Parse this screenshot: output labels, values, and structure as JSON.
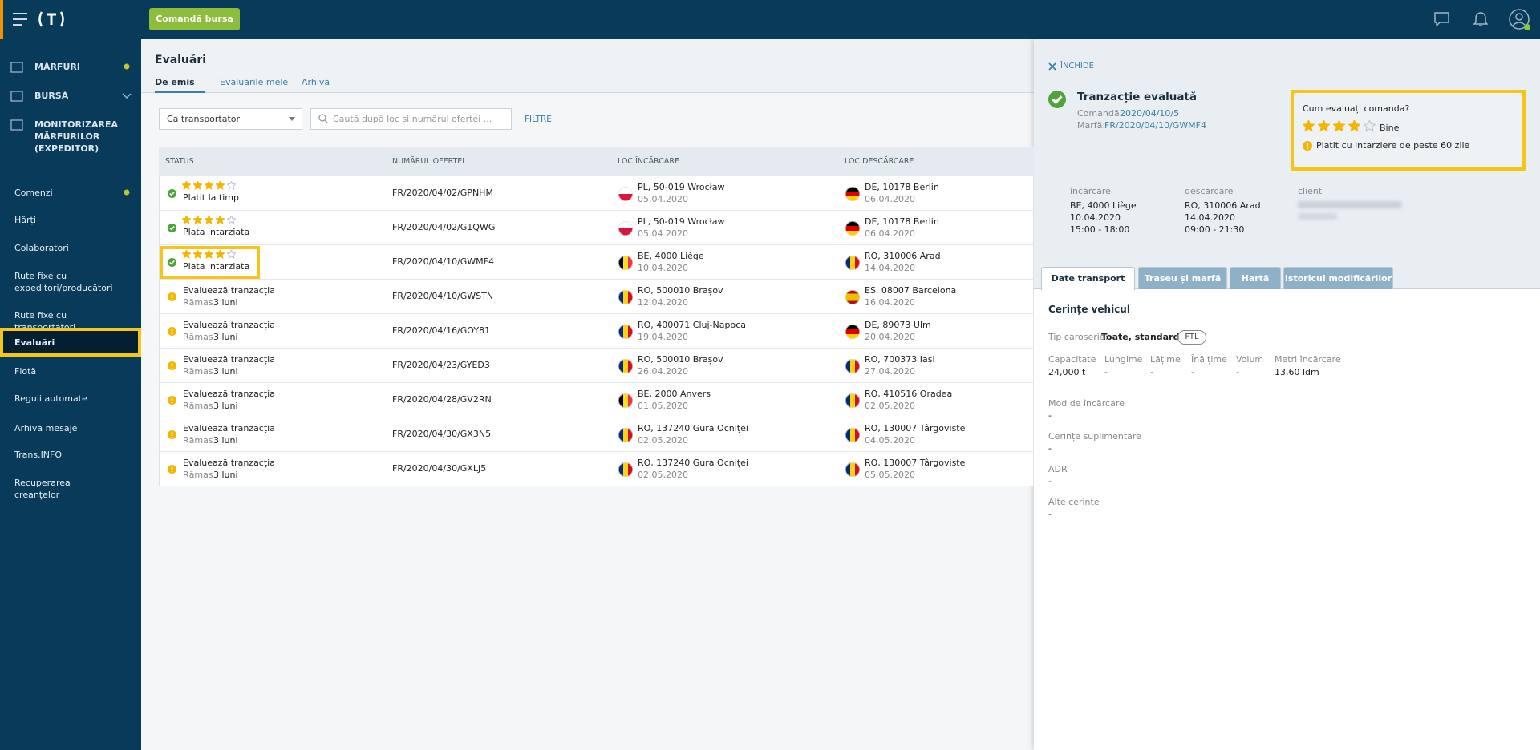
{
  "topbar": {
    "button": "Comandă bursa"
  },
  "sidebar": {
    "sections": [
      {
        "label": "MĂRFURI",
        "dot": true
      },
      {
        "label": "BURSĂ",
        "chevron": true
      },
      {
        "label": "MONITORIZAREA MĂRFURILOR (EXPEDITOR)"
      }
    ],
    "items": [
      {
        "label": "Comenzi",
        "dot": true
      },
      {
        "label": "Hărți"
      },
      {
        "label": "Colaboratori"
      },
      {
        "label": "Rute fixe cu expeditori/producători"
      },
      {
        "label": "Rute fixe cu transportatori"
      },
      {
        "label": "Evaluări",
        "active": true
      },
      {
        "label": "Flotă"
      },
      {
        "label": "Reguli automate"
      },
      {
        "label": "Arhivă mesaje"
      },
      {
        "label": "Trans.INFO"
      },
      {
        "label": "Recuperarea creanțelor"
      }
    ]
  },
  "page": {
    "title": "Evaluări",
    "tabs": [
      "De emis",
      "Evaluările mele",
      "Arhivă"
    ],
    "select": "Ca transportator",
    "search_placeholder": "Caută după loc și numărul ofertei ...",
    "filter_button": "FILTRE"
  },
  "table": {
    "headers": [
      "STATUS",
      "NUMĂRUL OFERTEI",
      "LOC ÎNCĂRCARE",
      "LOC DESCĂRCARE"
    ],
    "rows": [
      {
        "rating": 4,
        "status": "Platit la timp",
        "offer": "FR/2020/04/02/GPNHM",
        "load": "PL, 50-019 Wrocław",
        "load_date": "05.04.2020",
        "unload": "DE, 10178 Berlin",
        "unload_date": "06.04.2020"
      },
      {
        "rating": 4,
        "status": "Plata intarziata",
        "offer": "FR/2020/04/02/G1QWG",
        "load": "PL, 50-019 Wrocław",
        "load_date": "05.04.2020",
        "unload": "DE, 10178 Berlin",
        "unload_date": "06.04.2020"
      },
      {
        "rating": 4,
        "status": "Plata intarziata",
        "highlight": true,
        "offer": "FR/2020/04/10/GWMF4",
        "load": "BE, 4000 Liège",
        "load_date": "10.04.2020",
        "unload": "RO, 310006 Arad",
        "unload_date": "14.04.2020"
      },
      {
        "status": "Evaluează tranzacția",
        "remaining_label": "Rămas",
        "remaining": "3 luni",
        "offer": "FR/2020/04/10/GWSTN",
        "load": "RO, 500010 Brașov",
        "load_date": "12.04.2020",
        "unload": "ES, 08007 Barcelona",
        "unload_date": "16.04.2020"
      },
      {
        "status": "Evaluează tranzacția",
        "remaining_label": "Rămas",
        "remaining": "3 luni",
        "offer": "FR/2020/04/16/GOY81",
        "load": "RO, 400071 Cluj-Napoca",
        "load_date": "19.04.2020",
        "unload": "DE, 89073 Ulm",
        "unload_date": "20.04.2020"
      },
      {
        "status": "Evaluează tranzacția",
        "remaining_label": "Rămas",
        "remaining": "3 luni",
        "offer": "FR/2020/04/23/GYED3",
        "load": "RO, 500010 Brașov",
        "load_date": "26.04.2020",
        "unload": "RO, 700373 Iași",
        "unload_date": "27.04.2020"
      },
      {
        "status": "Evaluează tranzacția",
        "remaining_label": "Rămas",
        "remaining": "3 luni",
        "offer": "FR/2020/04/28/GV2RN",
        "load": "BE, 2000 Anvers",
        "load_date": "01.05.2020",
        "unload": "RO, 410516 Oradea",
        "unload_date": "02.05.2020"
      },
      {
        "status": "Evaluează tranzacția",
        "remaining_label": "Rămas",
        "remaining": "3 luni",
        "offer": "FR/2020/04/30/GX3N5",
        "load": "RO, 137240 Gura Ocniței",
        "load_date": "02.05.2020",
        "unload": "RO, 130007 Târgoviște",
        "unload_date": "04.05.2020"
      },
      {
        "status": "Evaluează tranzacția",
        "remaining_label": "Rămas",
        "remaining": "3 luni",
        "offer": "FR/2020/04/30/GXLJ5",
        "load": "RO, 137240 Gura Ocniței",
        "load_date": "02.05.2020",
        "unload": "RO, 130007 Târgoviște",
        "unload_date": "05.05.2020"
      }
    ]
  },
  "panel": {
    "close": "ÎNCHIDE",
    "title": "Tranzacție evaluată",
    "order_label": "Comandă:",
    "order": "2020/04/10/5",
    "cargo_label": "Marfă:",
    "cargo": "FR/2020/04/10/GWMF4",
    "rating_box": {
      "question": "Cum evaluați comanda?",
      "rating": 4,
      "rating_label": "Bine",
      "note": "Platit cu intarziere de peste 60 zile"
    },
    "details": [
      {
        "label": "încărcare",
        "lines": [
          "BE, 4000 Liège",
          "10.04.2020",
          "15:00 - 18:00"
        ]
      },
      {
        "label": "descărcare",
        "lines": [
          "RO, 310006 Arad",
          "14.04.2020",
          "09:00 - 21:30"
        ]
      },
      {
        "label": "client",
        "lines": []
      }
    ],
    "tabs": [
      "Date transport",
      "Traseu și marfă",
      "Hartă",
      "Istoricul modificărilor"
    ],
    "section": "Cerințe vehicul",
    "body_label": "Tip caroserie:",
    "body_value": "Toate, standard",
    "body_badge": "FTL",
    "specs": [
      {
        "label": "Capacitate",
        "value": "24,000 t"
      },
      {
        "label": "Lungime",
        "value": "-"
      },
      {
        "label": "Lățime",
        "value": "-"
      },
      {
        "label": "Înălțime",
        "value": "-"
      },
      {
        "label": "Volum",
        "value": "-"
      },
      {
        "label": "Metri încărcare",
        "value": "13,60 ldm"
      }
    ],
    "fields": [
      {
        "label": "Mod de încărcare",
        "value": "-"
      },
      {
        "label": "Cerințe suplimentare",
        "value": "-"
      },
      {
        "label": "ADR",
        "value": "-"
      },
      {
        "label": "Alte cerințe",
        "value": "-"
      }
    ]
  }
}
